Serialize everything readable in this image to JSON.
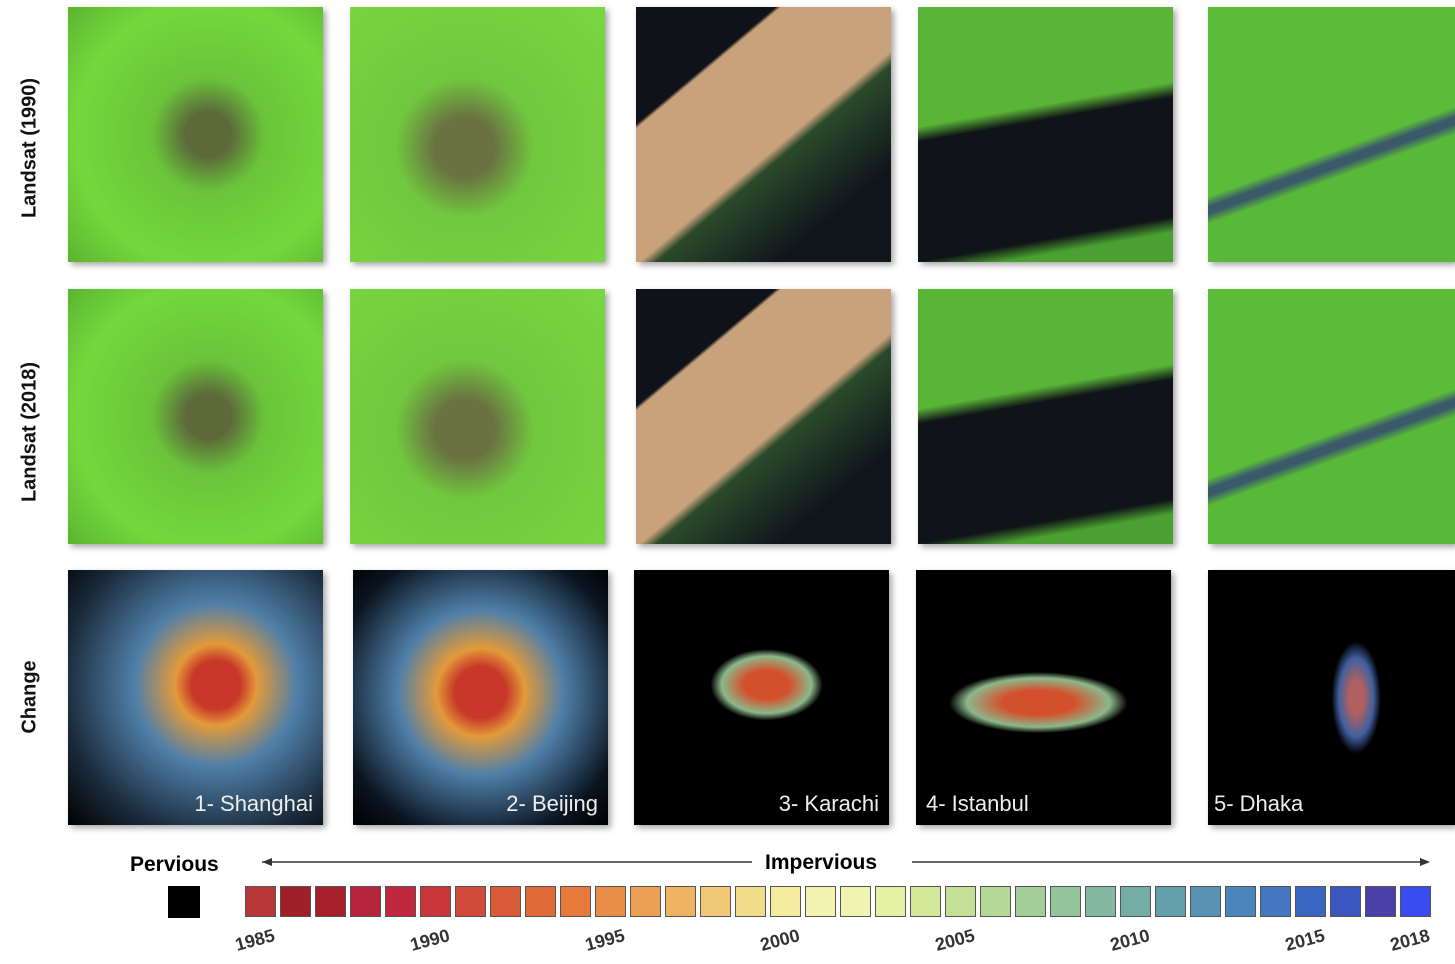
{
  "row_labels": [
    "Landsat (1990)",
    "Landsat (2018)",
    "Change"
  ],
  "cities": [
    "1- Shanghai",
    "2- Beijing",
    "3- Karachi",
    "4- Istanbul",
    "5- Dhaka"
  ],
  "legend": {
    "pervious": "Pervious",
    "impervious": "Impervious",
    "year_labels": [
      "1985",
      "1990",
      "1995",
      "2000",
      "2005",
      "2010",
      "2015",
      "2018"
    ],
    "colors": [
      "#b8383a",
      "#9e1f25",
      "#a8202a",
      "#b5243a",
      "#c02840",
      "#c8363c",
      "#d24a3a",
      "#d95a36",
      "#e06a38",
      "#e57a3a",
      "#e88e48",
      "#eba055",
      "#eeb464",
      "#f0c878",
      "#f2dc8a",
      "#f4ec9e",
      "#f4f4b0",
      "#f0f4b0",
      "#e4f0a4",
      "#d4e89a",
      "#c4e096",
      "#b4d896",
      "#a4ce98",
      "#94c49a",
      "#84b8a0",
      "#74aca6",
      "#64a0ac",
      "#5892b4",
      "#4c84bc",
      "#4476c2",
      "#3c66c4",
      "#3c56c0",
      "#4a40a8",
      "#3a4cf0"
    ]
  }
}
